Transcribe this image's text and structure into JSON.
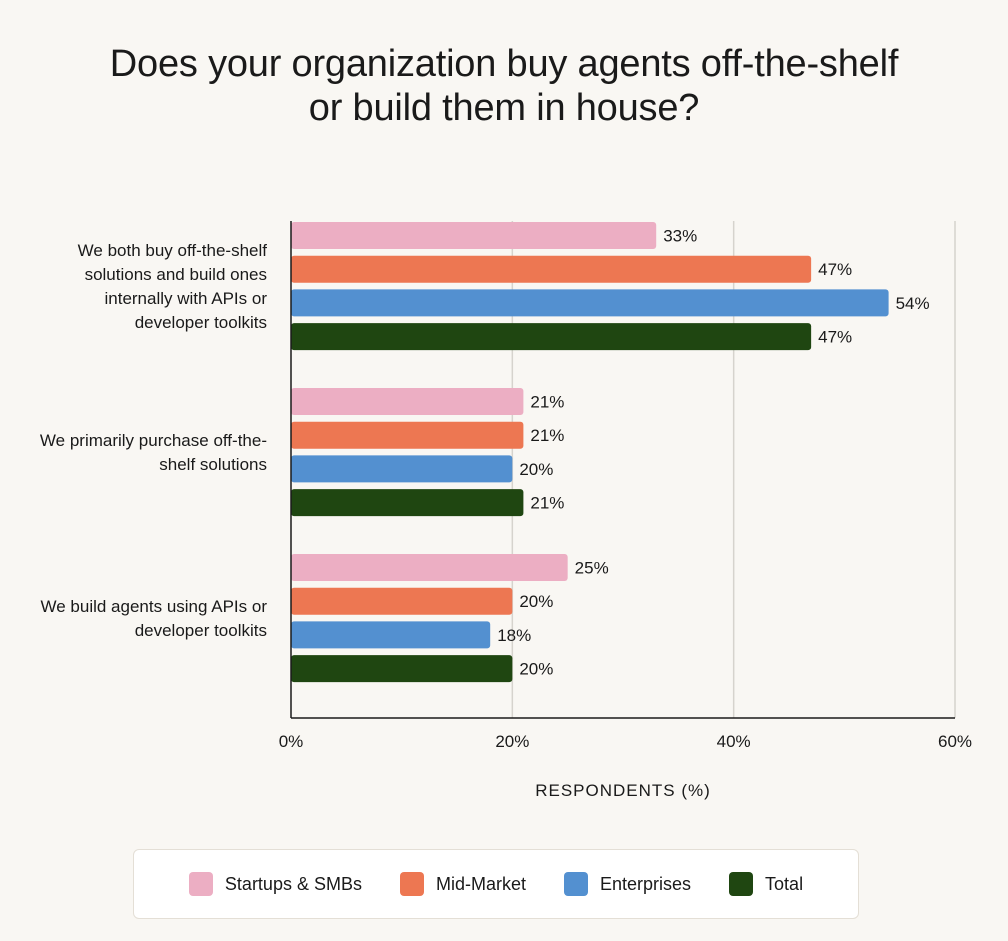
{
  "chart_data": {
    "type": "bar",
    "orientation": "horizontal",
    "title": [
      "Does your organization buy agents off-the-shelf",
      "or build them in house?"
    ],
    "xlabel": "RESPONDENTS (%)",
    "ylabel": "",
    "xlim": [
      0,
      60
    ],
    "xticks": [
      0,
      20,
      40,
      60
    ],
    "tick_suffix": "%",
    "grid": true,
    "legend_position": "bottom",
    "categories": [
      [
        "We both buy off-the-shelf",
        "solutions and build ones",
        "internally with APIs or",
        "developer toolkits"
      ],
      [
        "We primarily purchase off-the-",
        "shelf solutions"
      ],
      [
        "We build agents using APIs or",
        "developer toolkits"
      ]
    ],
    "series": [
      {
        "name": "Startups & SMBs",
        "color": "#ecaec3",
        "values": [
          33,
          21,
          25
        ]
      },
      {
        "name": "Mid-Market",
        "color": "#ed7752",
        "values": [
          47,
          21,
          20
        ]
      },
      {
        "name": "Enterprises",
        "color": "#5390d0",
        "values": [
          54,
          20,
          18
        ]
      },
      {
        "name": "Total",
        "color": "#1f4611",
        "values": [
          47,
          21,
          20
        ]
      }
    ]
  }
}
